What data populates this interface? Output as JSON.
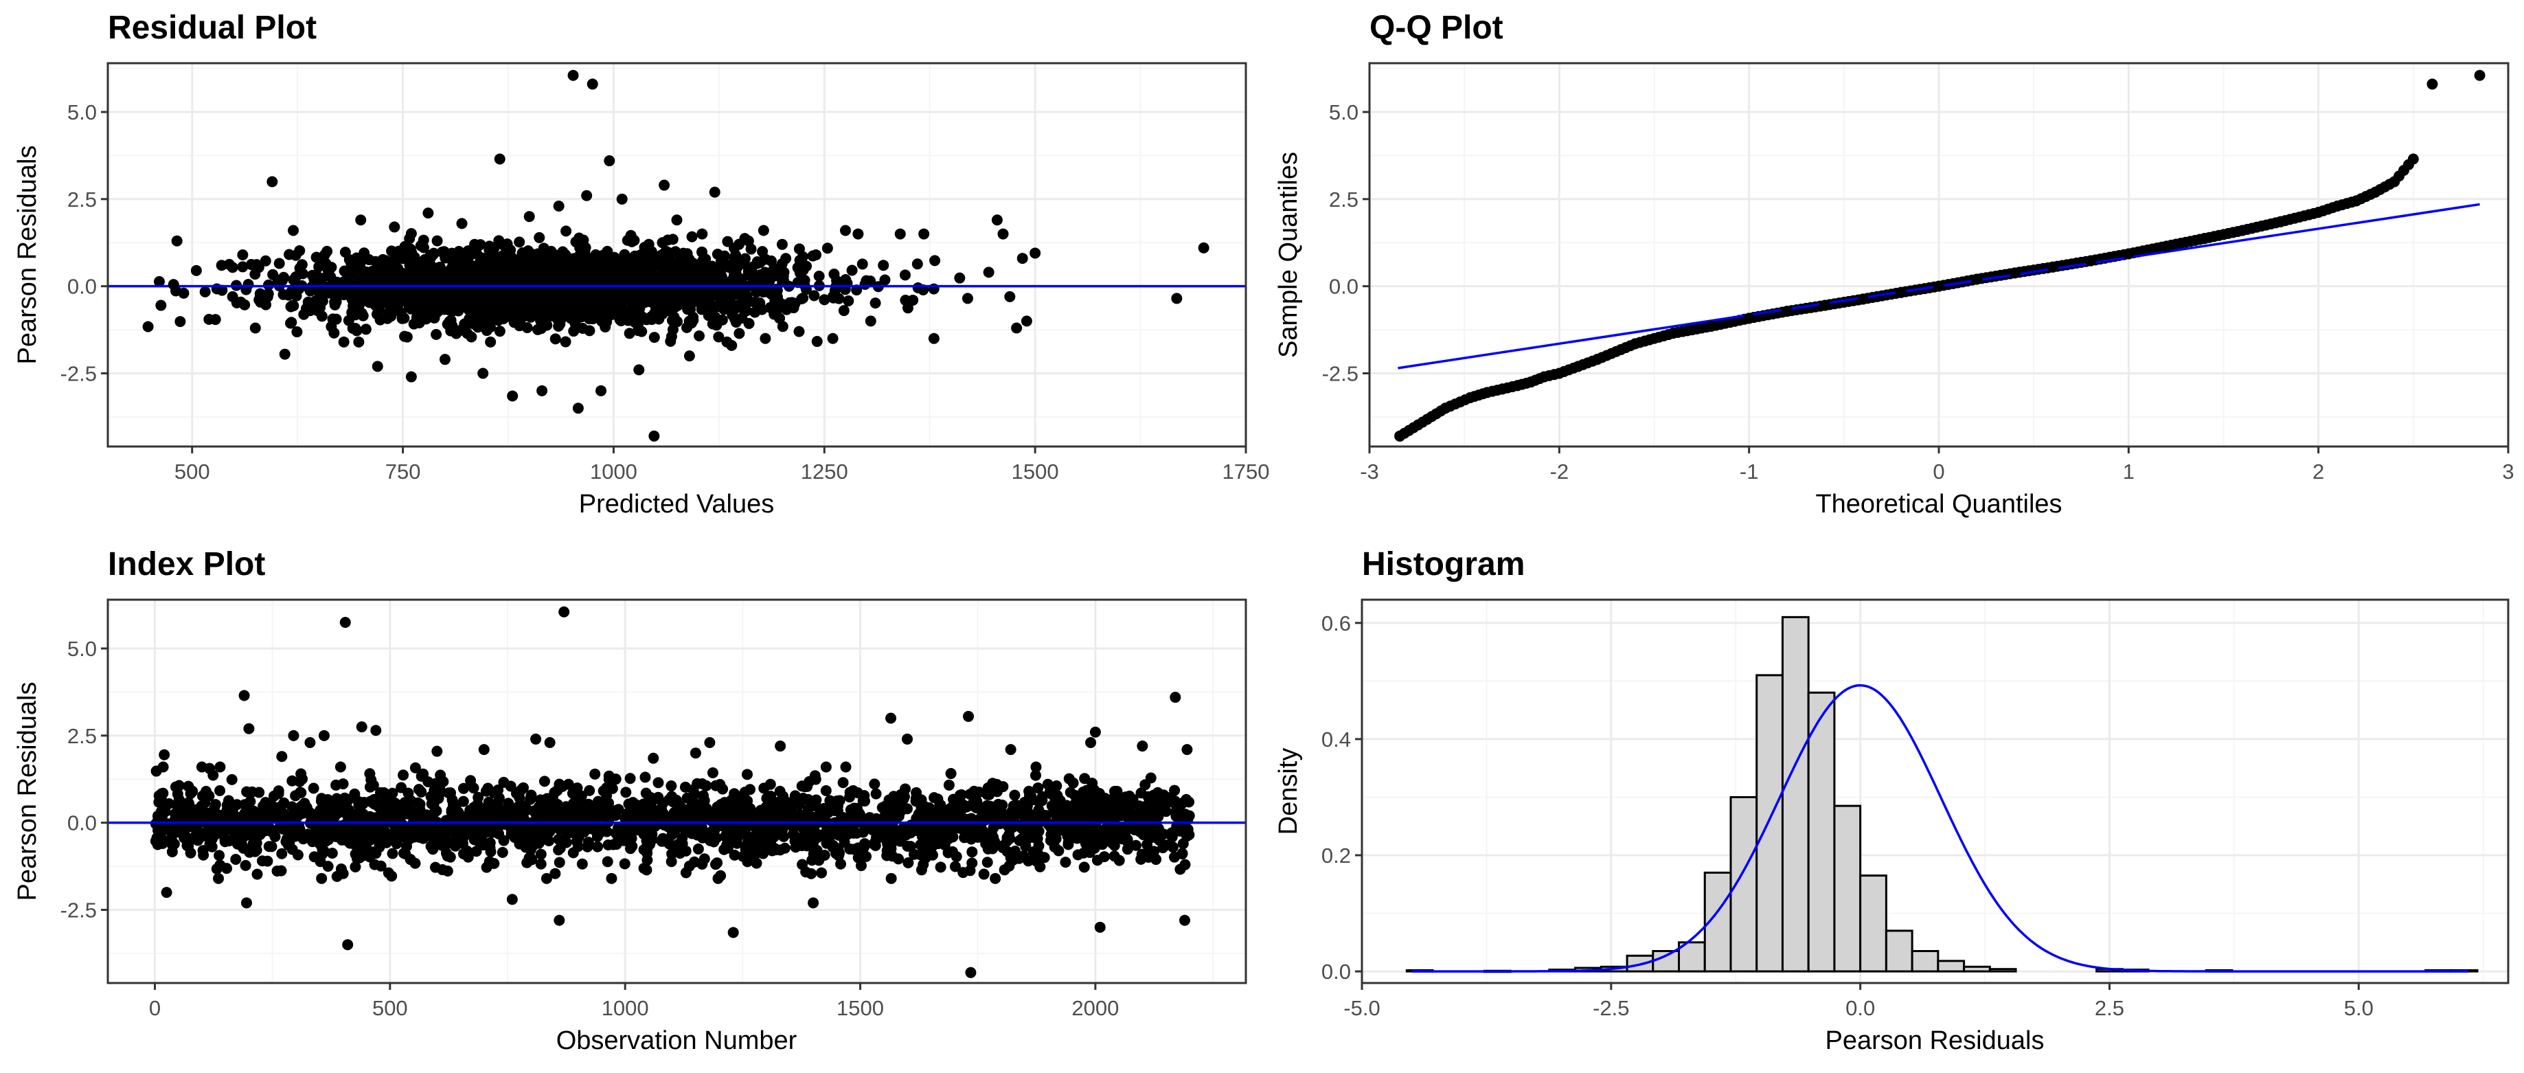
{
  "colors": {
    "points": "#000000",
    "reference_line": "#0000ff",
    "panel_border": "#333333",
    "grid_major": "#ebebeb",
    "grid_minor": "#f5f5f5",
    "bar_fill": "#d3d3d3",
    "bar_stroke": "#000000"
  },
  "chart_data": [
    {
      "id": "residual",
      "type": "scatter",
      "title": "Residual Plot",
      "xlabel": "Predicted Values",
      "ylabel": "Pearson Residuals",
      "xlim": [
        400,
        1750
      ],
      "ylim": [
        -4.6,
        6.4
      ],
      "xticks": [
        500,
        750,
        1000,
        1250,
        1500,
        1750
      ],
      "xtick_labels": [
        "500",
        "750",
        "1000",
        "1250",
        "1500",
        "1750"
      ],
      "yticks": [
        -2.5,
        0.0,
        2.5,
        5.0
      ],
      "ytick_labels": [
        "-2.5",
        "0.0",
        "2.5",
        "5.0"
      ],
      "grid": true,
      "reference_line": {
        "type": "horizontal",
        "y": 0
      },
      "points": [
        [
          463,
          -0.55
        ],
        [
          478,
          0.05
        ],
        [
          482,
          1.3
        ],
        [
          490,
          -0.2
        ],
        [
          505,
          0.45
        ],
        [
          520,
          -0.95
        ],
        [
          535,
          0.6
        ],
        [
          548,
          -0.3
        ],
        [
          560,
          0.9
        ],
        [
          575,
          -1.2
        ],
        [
          595,
          3.0
        ],
        [
          610,
          -1.95
        ],
        [
          620,
          1.6
        ],
        [
          640,
          -0.7
        ],
        [
          660,
          1.0
        ],
        [
          680,
          -1.6
        ],
        [
          700,
          1.9
        ],
        [
          720,
          -2.3
        ],
        [
          740,
          1.7
        ],
        [
          760,
          -2.6
        ],
        [
          780,
          2.1
        ],
        [
          800,
          -2.1
        ],
        [
          820,
          1.8
        ],
        [
          845,
          -2.5
        ],
        [
          865,
          3.65
        ],
        [
          880,
          -3.15
        ],
        [
          900,
          2.0
        ],
        [
          915,
          -3.0
        ],
        [
          935,
          2.3
        ],
        [
          952,
          6.05
        ],
        [
          958,
          -3.5
        ],
        [
          968,
          2.6
        ],
        [
          975,
          5.8
        ],
        [
          985,
          -3.0
        ],
        [
          995,
          3.6
        ],
        [
          1010,
          2.5
        ],
        [
          1030,
          -2.4
        ],
        [
          1048,
          -4.3
        ],
        [
          1060,
          2.9
        ],
        [
          1075,
          1.9
        ],
        [
          1090,
          -2.0
        ],
        [
          1105,
          1.5
        ],
        [
          1120,
          2.7
        ],
        [
          1140,
          -1.7
        ],
        [
          1160,
          1.3
        ],
        [
          1180,
          -1.5
        ],
        [
          1200,
          1.2
        ],
        [
          1220,
          -1.3
        ],
        [
          1240,
          0.9
        ],
        [
          1260,
          -1.5
        ],
        [
          1275,
          1.6
        ],
        [
          1290,
          1.5
        ],
        [
          1305,
          -1.0
        ],
        [
          1320,
          0.6
        ],
        [
          1340,
          1.5
        ],
        [
          1355,
          -0.4
        ],
        [
          1368,
          1.5
        ],
        [
          1380,
          -1.5
        ],
        [
          1420,
          -0.35
        ],
        [
          1445,
          0.4
        ],
        [
          1455,
          1.9
        ],
        [
          1462,
          1.5
        ],
        [
          1470,
          -0.3
        ],
        [
          1478,
          -1.2
        ],
        [
          1485,
          0.8
        ],
        [
          1490,
          -1.0
        ],
        [
          1500,
          0.95
        ],
        [
          1668,
          -0.35
        ],
        [
          1700,
          1.1
        ]
      ],
      "cluster": {
        "x_center": 930,
        "x_sd": 150,
        "y_sd": 0.55,
        "count": 2200
      }
    },
    {
      "id": "qq",
      "type": "scatter",
      "title": "Q-Q Plot",
      "xlabel": "Theoretical Quantiles",
      "ylabel": "Sample Quantiles",
      "xlim": [
        -3.0,
        3.0
      ],
      "ylim": [
        -4.6,
        6.4
      ],
      "xticks": [
        -3,
        -2,
        -1,
        0,
        1,
        2,
        3
      ],
      "xtick_labels": [
        "-3",
        "-2",
        "-1",
        "0",
        "1",
        "2",
        "3"
      ],
      "yticks": [
        -2.5,
        0.0,
        2.5,
        5.0
      ],
      "ytick_labels": [
        "-2.5",
        "0.0",
        "2.5",
        "5.0"
      ],
      "grid": true,
      "reference_line": {
        "type": "segment",
        "x": [
          -2.85,
          2.85
        ],
        "y": [
          -2.35,
          2.35
        ]
      },
      "points": [
        [
          -2.84,
          -4.3
        ],
        [
          -2.6,
          -3.5
        ],
        [
          -2.47,
          -3.2
        ],
        [
          -2.38,
          -3.05
        ],
        [
          -2.3,
          -2.95
        ],
        [
          -2.22,
          -2.85
        ],
        [
          -2.15,
          -2.75
        ],
        [
          -2.08,
          -2.6
        ],
        [
          -2.0,
          -2.5
        ],
        [
          -1.9,
          -2.3
        ],
        [
          -1.8,
          -2.1
        ],
        [
          -1.6,
          -1.65
        ],
        [
          -1.4,
          -1.35
        ],
        [
          -1.2,
          -1.15
        ],
        [
          -1.0,
          -0.92
        ],
        [
          -0.8,
          -0.72
        ],
        [
          -0.6,
          -0.55
        ],
        [
          -0.4,
          -0.37
        ],
        [
          -0.2,
          -0.18
        ],
        [
          0.0,
          0.0
        ],
        [
          0.2,
          0.2
        ],
        [
          0.4,
          0.38
        ],
        [
          0.6,
          0.55
        ],
        [
          0.8,
          0.73
        ],
        [
          1.0,
          0.93
        ],
        [
          1.2,
          1.15
        ],
        [
          1.4,
          1.37
        ],
        [
          1.6,
          1.6
        ],
        [
          1.8,
          1.85
        ],
        [
          2.0,
          2.12
        ],
        [
          2.1,
          2.3
        ],
        [
          2.2,
          2.45
        ],
        [
          2.3,
          2.7
        ],
        [
          2.4,
          3.0
        ],
        [
          2.5,
          3.65
        ],
        [
          2.6,
          5.8
        ],
        [
          2.85,
          6.05
        ]
      ]
    },
    {
      "id": "index",
      "type": "scatter",
      "title": "Index Plot",
      "xlabel": "Observation Number",
      "ylabel": "Pearson Residuals",
      "xlim": [
        -100,
        2320
      ],
      "ylim": [
        -4.6,
        6.4
      ],
      "xticks": [
        0,
        500,
        1000,
        1500,
        2000
      ],
      "xtick_labels": [
        "0",
        "500",
        "1000",
        "1500",
        "2000"
      ],
      "yticks": [
        -2.5,
        0.0,
        2.5,
        5.0
      ],
      "ytick_labels": [
        "-2.5",
        "0.0",
        "2.5",
        "5.0"
      ],
      "grid": true,
      "reference_line": {
        "type": "horizontal",
        "y": 0
      },
      "points": [
        [
          20,
          1.95
        ],
        [
          25,
          -2.0
        ],
        [
          100,
          1.6
        ],
        [
          190,
          3.65
        ],
        [
          195,
          -2.3
        ],
        [
          200,
          2.7
        ],
        [
          270,
          1.9
        ],
        [
          295,
          2.5
        ],
        [
          330,
          2.3
        ],
        [
          360,
          2.5
        ],
        [
          405,
          5.75
        ],
        [
          410,
          -3.5
        ],
        [
          440,
          2.75
        ],
        [
          470,
          2.65
        ],
        [
          600,
          2.05
        ],
        [
          700,
          2.1
        ],
        [
          760,
          -2.2
        ],
        [
          810,
          2.4
        ],
        [
          840,
          2.3
        ],
        [
          860,
          -2.8
        ],
        [
          870,
          6.05
        ],
        [
          1060,
          1.85
        ],
        [
          1150,
          2.0
        ],
        [
          1180,
          2.3
        ],
        [
          1230,
          -3.15
        ],
        [
          1330,
          2.2
        ],
        [
          1400,
          -2.3
        ],
        [
          1565,
          3.0
        ],
        [
          1600,
          2.4
        ],
        [
          1730,
          3.05
        ],
        [
          1735,
          -4.3
        ],
        [
          1820,
          2.1
        ],
        [
          1990,
          2.3
        ],
        [
          2000,
          2.6
        ],
        [
          2010,
          -3.0
        ],
        [
          2100,
          2.2
        ],
        [
          2170,
          3.6
        ],
        [
          2190,
          -2.8
        ],
        [
          2195,
          2.1
        ]
      ],
      "cluster": {
        "x_range": [
          0,
          2200
        ],
        "y_sd": 0.55,
        "count": 2200
      }
    },
    {
      "id": "histogram",
      "type": "bar",
      "title": "Histogram",
      "xlabel": "Pearson Residuals",
      "ylabel": "Density",
      "xlim": [
        -5.0,
        6.5
      ],
      "ylim": [
        -0.02,
        0.64
      ],
      "xticks": [
        -5.0,
        -2.5,
        0.0,
        2.5,
        5.0
      ],
      "xtick_labels": [
        "-5.0",
        "-2.5",
        "0.0",
        "2.5",
        "5.0"
      ],
      "yticks": [
        0.0,
        0.2,
        0.4,
        0.6
      ],
      "ytick_labels": [
        "0.0",
        "0.2",
        "0.4",
        "0.6"
      ],
      "grid": true,
      "bin_width": 0.26,
      "bins": [
        {
          "x": -4.42,
          "density": 0.002
        },
        {
          "x": -3.64,
          "density": 0.001
        },
        {
          "x": -2.99,
          "density": 0.003
        },
        {
          "x": -2.73,
          "density": 0.006
        },
        {
          "x": -2.47,
          "density": 0.008
        },
        {
          "x": -2.21,
          "density": 0.027
        },
        {
          "x": -1.95,
          "density": 0.035
        },
        {
          "x": -1.69,
          "density": 0.05
        },
        {
          "x": -1.43,
          "density": 0.17
        },
        {
          "x": -1.17,
          "density": 0.3
        },
        {
          "x": -0.91,
          "density": 0.51
        },
        {
          "x": -0.65,
          "density": 0.61
        },
        {
          "x": -0.39,
          "density": 0.48
        },
        {
          "x": -0.13,
          "density": 0.285
        },
        {
          "x": 0.13,
          "density": 0.165
        },
        {
          "x": 0.39,
          "density": 0.07
        },
        {
          "x": 0.65,
          "density": 0.035
        },
        {
          "x": 0.91,
          "density": 0.018
        },
        {
          "x": 1.17,
          "density": 0.008
        },
        {
          "x": 1.43,
          "density": 0.004
        },
        {
          "x": 2.5,
          "density": 0.004
        },
        {
          "x": 2.76,
          "density": 0.003
        },
        {
          "x": 3.6,
          "density": 0.002
        },
        {
          "x": 5.8,
          "density": 0.002
        },
        {
          "x": 6.06,
          "density": 0.002
        }
      ],
      "density_curve": {
        "mean": 0.0,
        "sd": 0.81,
        "x_range": [
          -4.5,
          6.1
        ]
      }
    }
  ]
}
